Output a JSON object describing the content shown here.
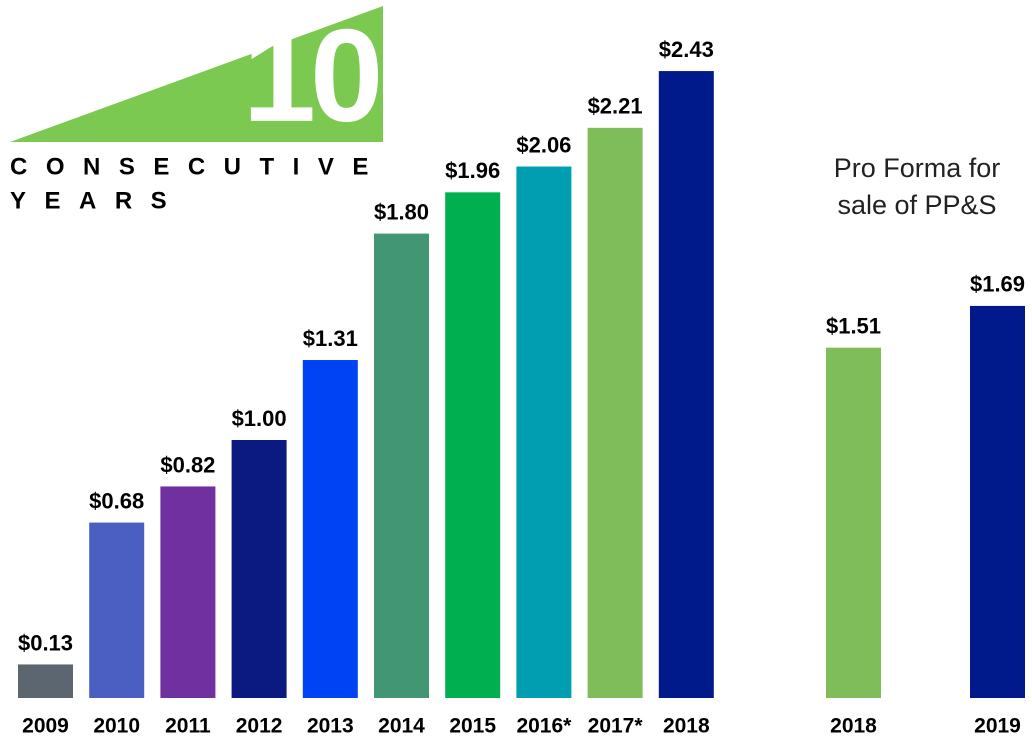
{
  "chart_data": [
    {
      "type": "bar",
      "badge": {
        "number": "10",
        "line1": "CONSECUTIVE",
        "line2": "YEARS"
      },
      "categories": [
        "2009",
        "2010",
        "2011",
        "2012",
        "2013",
        "2014",
        "2015",
        "2016*",
        "2017*",
        "2018"
      ],
      "values": [
        0.13,
        0.68,
        0.82,
        1.0,
        1.31,
        1.8,
        1.96,
        2.06,
        2.21,
        2.43
      ],
      "value_labels": [
        "$0.13",
        "$0.68",
        "$0.82",
        "$1.00",
        "$1.31",
        "$1.80",
        "$1.96",
        "$2.06",
        "$2.21",
        "$2.43"
      ],
      "colors": [
        "#5b6670",
        "#4a5fc1",
        "#7030a0",
        "#0a1a80",
        "#0043f5",
        "#429673",
        "#00b050",
        "#009eb0",
        "#7fbc5a",
        "#001a8c"
      ]
    },
    {
      "type": "bar",
      "title": [
        "Pro Forma for",
        "sale of PP&S"
      ],
      "categories": [
        "2018",
        "2019"
      ],
      "values": [
        1.51,
        1.69
      ],
      "value_labels": [
        "$1.51",
        "$1.69"
      ],
      "colors": [
        "#7fbc5a",
        "#001a8c"
      ]
    }
  ]
}
